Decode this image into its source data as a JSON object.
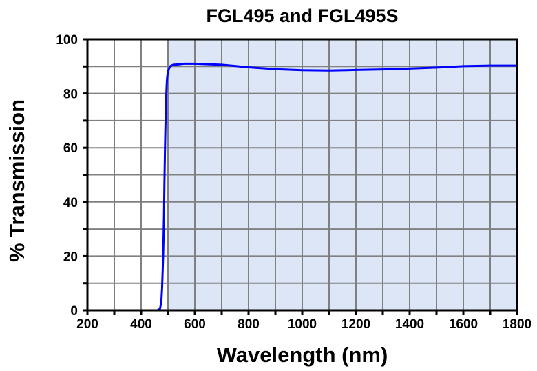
{
  "chart_data": {
    "type": "line",
    "title": "FGL495 and FGL495S",
    "xlabel": "Wavelength (nm)",
    "ylabel": "% Transmission",
    "xlim": [
      200,
      1800
    ],
    "ylim": [
      0,
      100
    ],
    "xticks": [
      200,
      400,
      600,
      800,
      1000,
      1200,
      1400,
      1600,
      1800
    ],
    "yticks": [
      0,
      20,
      40,
      60,
      80,
      100
    ],
    "grid": true,
    "shaded_region": {
      "x": [
        500,
        1800
      ],
      "color": "#dce6f7"
    },
    "series": [
      {
        "name": "FGL495",
        "color": "#0000ff",
        "x": [
          200,
          300,
          400,
          460,
          470,
          475,
          478,
          482,
          485,
          487,
          489,
          491,
          493,
          495,
          497,
          500,
          505,
          510,
          520,
          540,
          560,
          600,
          700,
          800,
          900,
          1000,
          1100,
          1200,
          1300,
          1400,
          1500,
          1600,
          1700,
          1800
        ],
        "y": [
          0,
          0,
          0,
          0,
          0.5,
          3,
          8,
          20,
          35,
          48,
          60,
          70,
          78,
          83,
          86,
          88,
          89.5,
          90.2,
          90.6,
          90.8,
          91,
          91,
          90.6,
          89.7,
          89,
          88.6,
          88.5,
          88.7,
          88.9,
          89.2,
          89.6,
          90.1,
          90.3,
          90.3
        ]
      }
    ]
  }
}
